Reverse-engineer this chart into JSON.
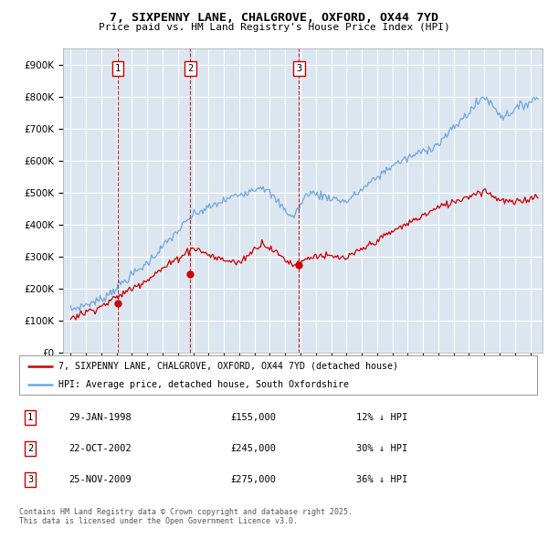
{
  "title_line1": "7, SIXPENNY LANE, CHALGROVE, OXFORD, OX44 7YD",
  "title_line2": "Price paid vs. HM Land Registry's House Price Index (HPI)",
  "background_color": "#ffffff",
  "plot_bg_color": "#dce6f1",
  "grid_color": "#ffffff",
  "transaction_prices": [
    155000,
    245000,
    275000
  ],
  "transaction_labels": [
    "1",
    "2",
    "3"
  ],
  "transaction_year_vals": [
    1998.08,
    2002.81,
    2009.9
  ],
  "legend_line1": "7, SIXPENNY LANE, CHALGROVE, OXFORD, OX44 7YD (detached house)",
  "legend_line2": "HPI: Average price, detached house, South Oxfordshire",
  "table_rows": [
    [
      "1",
      "29-JAN-1998",
      "£155,000",
      "12% ↓ HPI"
    ],
    [
      "2",
      "22-OCT-2002",
      "£245,000",
      "30% ↓ HPI"
    ],
    [
      "3",
      "25-NOV-2009",
      "£275,000",
      "36% ↓ HPI"
    ]
  ],
  "footnote": "Contains HM Land Registry data © Crown copyright and database right 2025.\nThis data is licensed under the Open Government Licence v3.0.",
  "hpi_color": "#6fa8dc",
  "price_color": "#cc0000",
  "vline_color": "#cc0000",
  "ylim_max": 950000,
  "ylim_min": 0,
  "xlim_min": 1994.5,
  "xlim_max": 2025.8
}
